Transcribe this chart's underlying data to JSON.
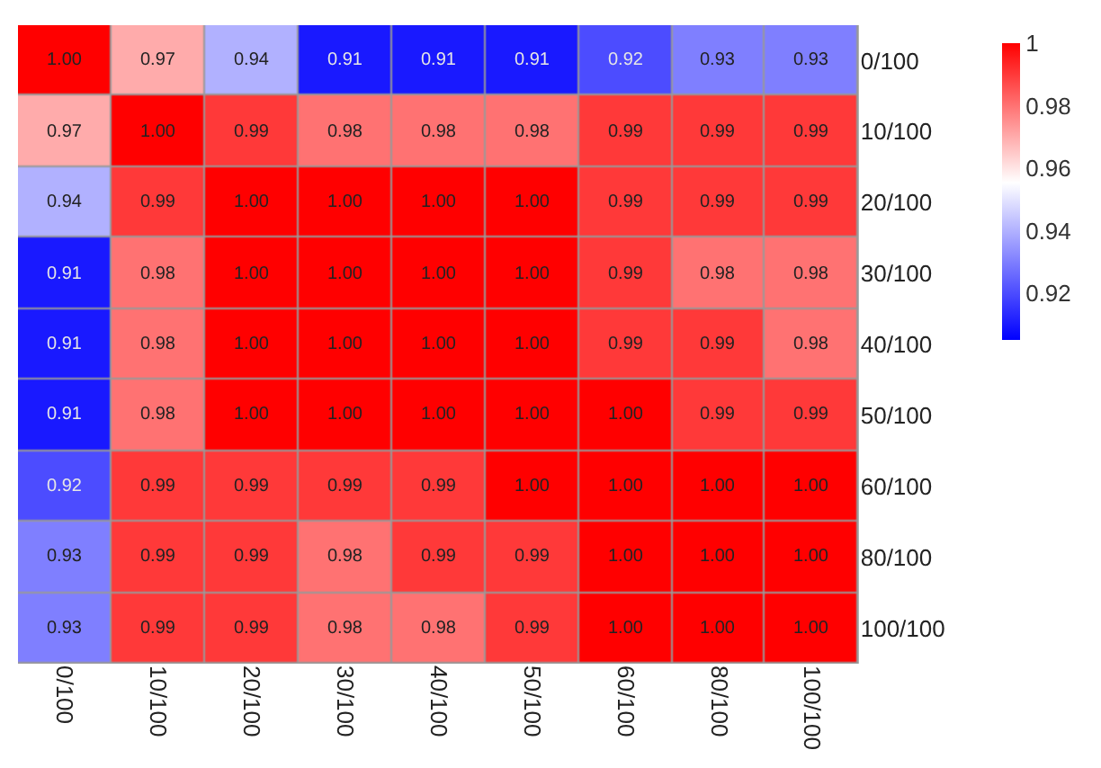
{
  "chart_data": {
    "type": "heatmap",
    "categories": [
      "0/100",
      "10/100",
      "20/100",
      "30/100",
      "40/100",
      "50/100",
      "60/100",
      "80/100",
      "100/100"
    ],
    "y_categories": [
      "0/100",
      "10/100",
      "20/100",
      "30/100",
      "40/100",
      "50/100",
      "60/100",
      "80/100",
      "100/100"
    ],
    "cells": [
      [
        1.0,
        0.97,
        0.94,
        0.91,
        0.91,
        0.91,
        0.92,
        0.93,
        0.93
      ],
      [
        0.97,
        1.0,
        0.99,
        0.98,
        0.98,
        0.98,
        0.99,
        0.99,
        0.99
      ],
      [
        0.94,
        0.99,
        1.0,
        1.0,
        1.0,
        1.0,
        0.99,
        0.99,
        0.99
      ],
      [
        0.91,
        0.98,
        1.0,
        1.0,
        1.0,
        1.0,
        0.99,
        0.98,
        0.98
      ],
      [
        0.91,
        0.98,
        1.0,
        1.0,
        1.0,
        1.0,
        0.99,
        0.99,
        0.98
      ],
      [
        0.91,
        0.98,
        1.0,
        1.0,
        1.0,
        1.0,
        1.0,
        0.99,
        0.99
      ],
      [
        0.92,
        0.99,
        0.99,
        0.99,
        0.99,
        1.0,
        1.0,
        1.0,
        1.0
      ],
      [
        0.93,
        0.99,
        0.99,
        0.98,
        0.99,
        0.99,
        1.0,
        1.0,
        1.0
      ],
      [
        0.93,
        0.99,
        0.99,
        0.98,
        0.98,
        0.99,
        1.0,
        1.0,
        1.0
      ]
    ],
    "clim": [
      0.905,
      1
    ],
    "cticks": [
      0.92,
      0.94,
      0.96,
      0.98,
      1
    ],
    "cell_labels": [
      [
        "1.00",
        "0.97",
        "0.94",
        "0.91",
        "0.91",
        "0.91",
        "0.92",
        "0.93",
        "0.93"
      ],
      [
        "0.97",
        "1.00",
        "0.99",
        "0.98",
        "0.98",
        "0.98",
        "0.99",
        "0.99",
        "0.99"
      ],
      [
        "0.94",
        "0.99",
        "1.00",
        "1.00",
        "1.00",
        "1.00",
        "0.99",
        "0.99",
        "0.99"
      ],
      [
        "0.91",
        "0.98",
        "1.00",
        "1.00",
        "1.00",
        "1.00",
        "0.99",
        "0.98",
        "0.98"
      ],
      [
        "0.91",
        "0.98",
        "1.00",
        "1.00",
        "1.00",
        "1.00",
        "0.99",
        "0.99",
        "0.98"
      ],
      [
        "0.91",
        "0.98",
        "1.00",
        "1.00",
        "1.00",
        "1.00",
        "1.00",
        "0.99",
        "0.99"
      ],
      [
        "0.92",
        "0.99",
        "0.99",
        "0.99",
        "0.99",
        "1.00",
        "1.00",
        "1.00",
        "1.00"
      ],
      [
        "0.93",
        "0.99",
        "0.99",
        "0.98",
        "0.99",
        "0.99",
        "1.00",
        "1.00",
        "1.00"
      ],
      [
        "0.93",
        "0.99",
        "0.99",
        "0.98",
        "0.98",
        "0.99",
        "1.00",
        "1.00",
        "1.00"
      ]
    ]
  }
}
